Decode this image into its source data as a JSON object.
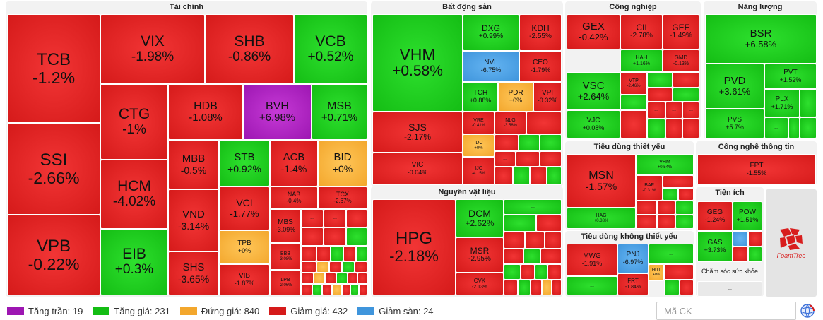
{
  "sectors": [
    {
      "id": "taichinh",
      "title": "Tài chính"
    },
    {
      "id": "bds",
      "title": "Bất động sản"
    },
    {
      "id": "congnghiep",
      "title": "Công nghiệp"
    },
    {
      "id": "nangluong",
      "title": "Năng lượng"
    },
    {
      "id": "nvl",
      "title": "Nguyên vật liệu"
    },
    {
      "id": "tdty",
      "title": "Tiêu dùng thiết yếu"
    },
    {
      "id": "cntt",
      "title": "Công nghệ thông tin"
    },
    {
      "id": "tdkty",
      "title": "Tiêu dùng không thiết yếu"
    },
    {
      "id": "tienich",
      "title": "Tiện ích"
    },
    {
      "id": "chamsoc",
      "title": "Chăm sóc sức khỏe"
    }
  ],
  "tiles": [
    {
      "sym": "TCB",
      "chg": "-1.2%",
      "color": "down"
    },
    {
      "sym": "SSI",
      "chg": "-2.66%",
      "color": "down"
    },
    {
      "sym": "VPB",
      "chg": "-0.22%",
      "color": "down"
    },
    {
      "sym": "VIX",
      "chg": "-1.98%",
      "color": "down"
    },
    {
      "sym": "SHB",
      "chg": "-0.86%",
      "color": "down"
    },
    {
      "sym": "VCB",
      "chg": "+0.52%",
      "color": "up"
    },
    {
      "sym": "CTG",
      "chg": "-1%",
      "color": "down"
    },
    {
      "sym": "HCM",
      "chg": "-4.02%",
      "color": "down"
    },
    {
      "sym": "EIB",
      "chg": "+0.3%",
      "color": "up"
    },
    {
      "sym": "HDB",
      "chg": "-1.08%",
      "color": "down"
    },
    {
      "sym": "BVH",
      "chg": "+6.98%",
      "color": "ceil"
    },
    {
      "sym": "MSB",
      "chg": "+0.71%",
      "color": "up"
    },
    {
      "sym": "MBB",
      "chg": "-0.5%",
      "color": "down"
    },
    {
      "sym": "STB",
      "chg": "+0.92%",
      "color": "up"
    },
    {
      "sym": "ACB",
      "chg": "-1.4%",
      "color": "down"
    },
    {
      "sym": "BID",
      "chg": "+0%",
      "color": "flat"
    },
    {
      "sym": "VND",
      "chg": "-3.14%",
      "color": "down"
    },
    {
      "sym": "VCI",
      "chg": "-1.77%",
      "color": "down"
    },
    {
      "sym": "NAB",
      "chg": "-0.4%",
      "color": "down"
    },
    {
      "sym": "TCX",
      "chg": "-2.67%",
      "color": "down"
    },
    {
      "sym": "SHS",
      "chg": "-3.65%",
      "color": "down"
    },
    {
      "sym": "TPB",
      "chg": "+0%",
      "color": "flat"
    },
    {
      "sym": "MBS",
      "chg": "-3.09%",
      "color": "down"
    },
    {
      "sym": "VIB",
      "chg": "-1.87%",
      "color": "down"
    },
    {
      "sym": "BBB",
      "chg": "-3.08%",
      "color": "down"
    },
    {
      "sym": "LPB",
      "chg": "-2.06%",
      "color": "down"
    },
    {
      "sym": "VHM",
      "chg": "+0.58%",
      "color": "up"
    },
    {
      "sym": "DXG",
      "chg": "+0.99%",
      "color": "up"
    },
    {
      "sym": "KDH",
      "chg": "-2.55%",
      "color": "down"
    },
    {
      "sym": "NVL",
      "chg": "-6.75%",
      "color": "floor"
    },
    {
      "sym": "CEO",
      "chg": "-1.79%",
      "color": "down"
    },
    {
      "sym": "TCH",
      "chg": "+0.88%",
      "color": "up"
    },
    {
      "sym": "PDR",
      "chg": "+0%",
      "color": "flat"
    },
    {
      "sym": "VPI",
      "chg": "-0.32%",
      "color": "down"
    },
    {
      "sym": "SJS",
      "chg": "-2.17%",
      "color": "down"
    },
    {
      "sym": "VRE",
      "chg": "-0.41%",
      "color": "down"
    },
    {
      "sym": "NLG",
      "chg": "-3.58%",
      "color": "down"
    },
    {
      "sym": "IDC",
      "chg": "+0%",
      "color": "flat"
    },
    {
      "sym": "VIC",
      "chg": "-0.04%",
      "color": "down"
    },
    {
      "sym": "IJC",
      "chg": "-4.15%",
      "color": "down"
    },
    {
      "sym": "GEX",
      "chg": "-0.42%",
      "color": "down"
    },
    {
      "sym": "CII",
      "chg": "-2.78%",
      "color": "down"
    },
    {
      "sym": "GEE",
      "chg": "-1.49%",
      "color": "down"
    },
    {
      "sym": "HAH",
      "chg": "+1.16%",
      "color": "up"
    },
    {
      "sym": "GMD",
      "chg": "-0.13%",
      "color": "down"
    },
    {
      "sym": "VSC",
      "chg": "+2.64%",
      "color": "up"
    },
    {
      "sym": "VJC",
      "chg": "+0.08%",
      "color": "up"
    },
    {
      "sym": "VTP",
      "chg": "-2.46%",
      "color": "down"
    },
    {
      "sym": "BSR",
      "chg": "+6.58%",
      "color": "up"
    },
    {
      "sym": "PVD",
      "chg": "+3.61%",
      "color": "up"
    },
    {
      "sym": "PVT",
      "chg": "+1.52%",
      "color": "up"
    },
    {
      "sym": "PLX",
      "chg": "+1.71%",
      "color": "up"
    },
    {
      "sym": "PVS",
      "chg": "+5.7%",
      "color": "up"
    },
    {
      "sym": "HPG",
      "chg": "-2.18%",
      "color": "down"
    },
    {
      "sym": "DCM",
      "chg": "+2.62%",
      "color": "up"
    },
    {
      "sym": "MSR",
      "chg": "-2.95%",
      "color": "down"
    },
    {
      "sym": "CVK",
      "chg": "-2.13%",
      "color": "down"
    },
    {
      "sym": "MSN",
      "chg": "-1.57%",
      "color": "down"
    },
    {
      "sym": "VHM",
      "chg": "+0.54%",
      "color": "up"
    },
    {
      "sym": "BAF",
      "chg": "-0.31%",
      "color": "down"
    },
    {
      "sym": "HAG",
      "chg": "+0.38%",
      "color": "up"
    },
    {
      "sym": "FPT",
      "chg": "-1.55%",
      "color": "down"
    },
    {
      "sym": "MWG",
      "chg": "-1.91%",
      "color": "down"
    },
    {
      "sym": "PNJ",
      "chg": "-6.97%",
      "color": "floor"
    },
    {
      "sym": "FRT",
      "chg": "-1.84%",
      "color": "down"
    },
    {
      "sym": "HUT",
      "chg": "+0%",
      "color": "flat"
    },
    {
      "sym": "GEG",
      "chg": "-1.24%",
      "color": "down"
    },
    {
      "sym": "POW",
      "chg": "+1.51%",
      "color": "up"
    },
    {
      "sym": "GAS",
      "chg": "+3.73%",
      "color": "up"
    }
  ],
  "more_label": "...",
  "logo": {
    "text": "FoamTree",
    "colors": [
      "#d81e1e",
      "#ffffff"
    ]
  },
  "legend": [
    {
      "label": "Tăng trần: 19",
      "color": "#9d16b2"
    },
    {
      "label": "Tăng giá: 231",
      "color": "#14bd14"
    },
    {
      "label": "Đứng giá: 840",
      "color": "#f3a72d"
    },
    {
      "label": "Giảm giá: 432",
      "color": "#d51a1a"
    },
    {
      "label": "Giảm sàn: 24",
      "color": "#3f95dc"
    }
  ],
  "search": {
    "placeholder": "Mã CK"
  },
  "icons": {
    "refresh": "refresh-globe-icon"
  }
}
